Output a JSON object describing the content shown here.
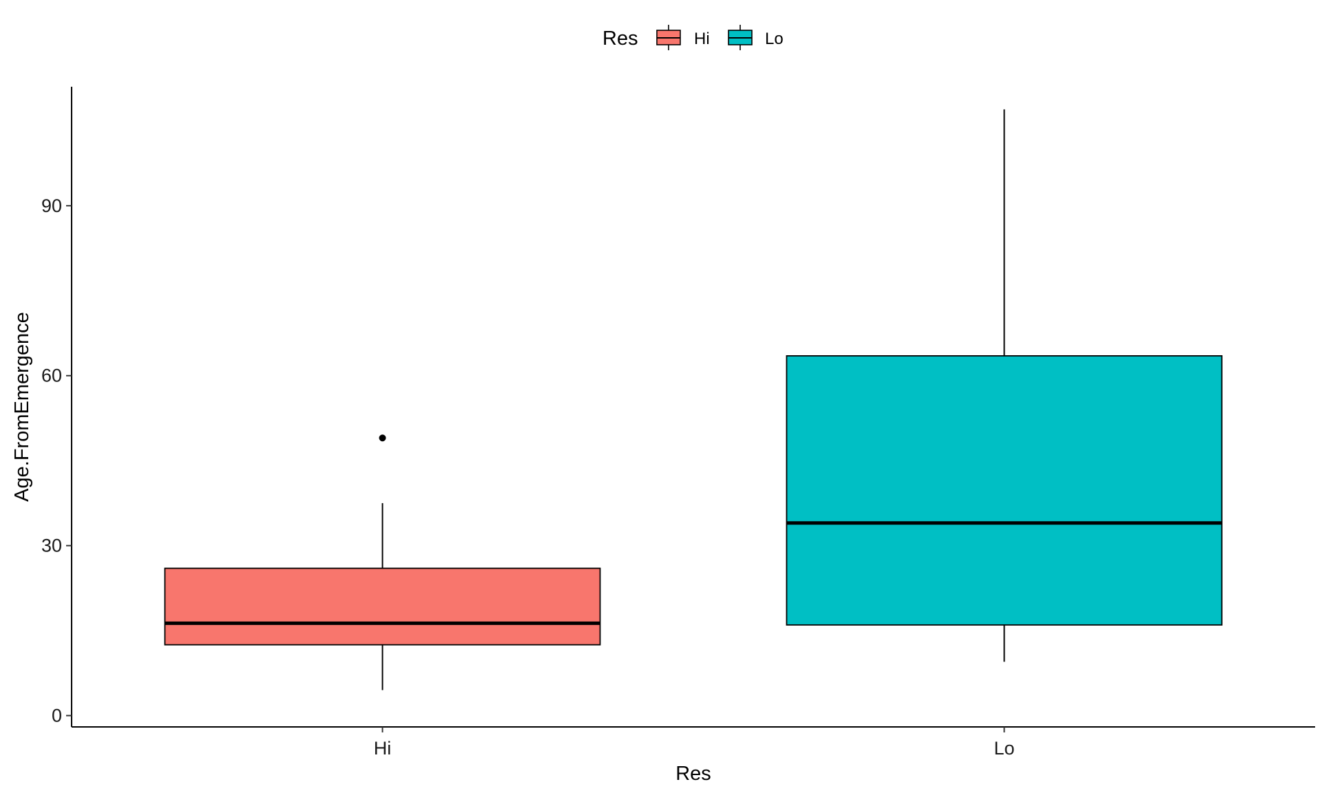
{
  "chart_data": {
    "type": "boxplot",
    "title": "",
    "xlabel": "Res",
    "ylabel": "Age.FromEmergence",
    "ylim": [
      -2,
      111
    ],
    "yticks": [
      0,
      30,
      60,
      90
    ],
    "ytick_labels": [
      "0",
      "30",
      "60",
      "90"
    ],
    "categories": [
      "Hi",
      "Lo"
    ],
    "grid": false,
    "legend": {
      "title": "Res",
      "position": "top",
      "entries": [
        "Hi",
        "Lo"
      ]
    },
    "series": [
      {
        "name": "Hi",
        "color": "#F8766D",
        "min": 4.5,
        "q1": 12.5,
        "median": 16.3,
        "q3": 26,
        "max": 37.5,
        "outliers": [
          49
        ]
      },
      {
        "name": "Lo",
        "color": "#00BFC4",
        "min": 9.5,
        "q1": 16,
        "median": 34,
        "q3": 63.5,
        "max": 107,
        "outliers": []
      }
    ]
  }
}
